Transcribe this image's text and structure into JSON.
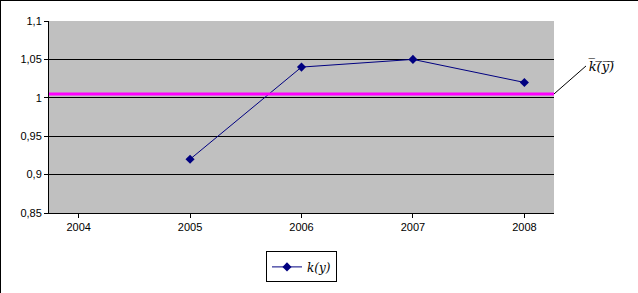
{
  "chart_data": {
    "type": "line",
    "categories": [
      "2004",
      "2005",
      "2006",
      "2007",
      "2008"
    ],
    "series": [
      {
        "name": "k(y)",
        "color": "#000080",
        "marker": "diamond",
        "values": [
          null,
          0.92,
          1.04,
          1.05,
          1.02
        ]
      }
    ],
    "reference_line": {
      "value": 1.005,
      "label": "k̅(̅y̅)̅",
      "color": "#ff00ff"
    },
    "ylim": [
      0.85,
      1.1
    ],
    "yticks": [
      {
        "value": 0.85,
        "label": "0,85"
      },
      {
        "value": 0.9,
        "label": "0,9"
      },
      {
        "value": 0.95,
        "label": "0,95"
      },
      1,
      {
        "value": 1.05,
        "label": "1,05"
      },
      {
        "value": 1.1,
        "label": "1,1"
      }
    ],
    "grid": true,
    "legend": "bottom"
  }
}
